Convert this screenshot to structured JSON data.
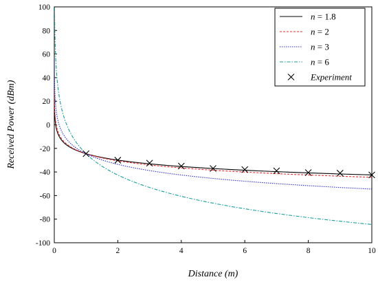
{
  "chart_data": {
    "type": "line",
    "xlabel": "Distance (m)",
    "ylabel": "Received Power (dBm)",
    "xlim": [
      0,
      10
    ],
    "ylim": [
      -100,
      100
    ],
    "x_ticks": [
      0,
      2,
      4,
      6,
      8,
      10
    ],
    "y_ticks": [
      -100,
      -80,
      -60,
      -40,
      -20,
      0,
      20,
      40,
      60,
      80,
      100
    ],
    "grid": false,
    "legend_position": "top-right",
    "model": {
      "reference_power_dbm": -24.5,
      "reference_distance_m": 1.0
    },
    "series": [
      {
        "name": "n = 1.8",
        "exponent": 1.8,
        "color": "#000000",
        "dash": "",
        "width": 1.1
      },
      {
        "name": "n = 2",
        "exponent": 2,
        "color": "#e8262a",
        "dash": "3,2",
        "width": 1.1
      },
      {
        "name": "n = 3",
        "exponent": 3,
        "color": "#2c2cd8",
        "dash": "1.5,1.5",
        "width": 1.1
      },
      {
        "name": "n = 6",
        "exponent": 6,
        "color": "#169e9e",
        "dash": "5,2,1.5,2",
        "width": 1.1
      }
    ],
    "experiment": {
      "name": "Experiment",
      "marker": "x",
      "points": [
        {
          "x": 1,
          "y": -24.5
        },
        {
          "x": 2,
          "y": -30
        },
        {
          "x": 3,
          "y": -32.5
        },
        {
          "x": 4,
          "y": -35
        },
        {
          "x": 5,
          "y": -37
        },
        {
          "x": 6,
          "y": -38
        },
        {
          "x": 7,
          "y": -39
        },
        {
          "x": 8,
          "y": -40.5
        },
        {
          "x": 9,
          "y": -41
        },
        {
          "x": 10,
          "y": -42.5
        }
      ]
    }
  }
}
